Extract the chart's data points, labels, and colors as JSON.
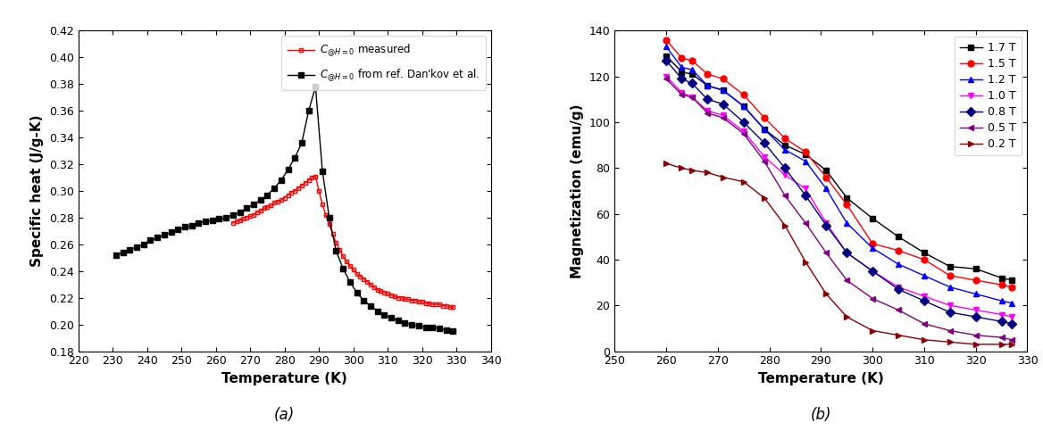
{
  "panel_a": {
    "title": "(a)",
    "xlabel": "Temperature (K)",
    "ylabel": "Specific heat (J/g-K)",
    "xlim": [
      220,
      340
    ],
    "ylim": [
      0.18,
      0.42
    ],
    "xticks": [
      220,
      230,
      240,
      250,
      260,
      270,
      280,
      290,
      300,
      310,
      320,
      330,
      340
    ],
    "yticks": [
      0.18,
      0.2,
      0.22,
      0.24,
      0.26,
      0.28,
      0.3,
      0.32,
      0.34,
      0.36,
      0.38,
      0.4,
      0.42
    ],
    "measured": {
      "label": "$C_{@H=0}$ measured",
      "color": "#ff0000",
      "marker": "s",
      "markersize": 3.5,
      "markerfacecolor": "none",
      "T": [
        265,
        266,
        267,
        268,
        269,
        270,
        271,
        272,
        273,
        274,
        275,
        276,
        277,
        278,
        279,
        280,
        281,
        282,
        283,
        284,
        285,
        286,
        287,
        288,
        289,
        290,
        291,
        292,
        293,
        294,
        295,
        296,
        297,
        298,
        299,
        300,
        301,
        302,
        303,
        304,
        305,
        306,
        307,
        308,
        309,
        310,
        311,
        312,
        313,
        314,
        315,
        316,
        317,
        318,
        319,
        320,
        321,
        322,
        323,
        324,
        325,
        326,
        327,
        328,
        329
      ],
      "C": [
        0.276,
        0.277,
        0.278,
        0.279,
        0.28,
        0.281,
        0.282,
        0.284,
        0.285,
        0.287,
        0.288,
        0.289,
        0.291,
        0.292,
        0.293,
        0.295,
        0.297,
        0.299,
        0.3,
        0.302,
        0.304,
        0.306,
        0.308,
        0.31,
        0.311,
        0.3,
        0.29,
        0.282,
        0.275,
        0.268,
        0.261,
        0.256,
        0.251,
        0.247,
        0.244,
        0.241,
        0.238,
        0.236,
        0.234,
        0.232,
        0.23,
        0.228,
        0.226,
        0.225,
        0.224,
        0.223,
        0.222,
        0.221,
        0.22,
        0.22,
        0.219,
        0.219,
        0.218,
        0.218,
        0.217,
        0.217,
        0.216,
        0.216,
        0.215,
        0.215,
        0.215,
        0.214,
        0.214,
        0.213,
        0.213
      ]
    },
    "reference": {
      "label": "$C_{@H=0}$ from ref. Dan'kov et al.",
      "color": "#000000",
      "marker": "s",
      "markersize": 4,
      "T": [
        231,
        233,
        235,
        237,
        239,
        241,
        243,
        245,
        247,
        249,
        251,
        253,
        255,
        257,
        259,
        261,
        263,
        265,
        267,
        269,
        271,
        273,
        275,
        277,
        279,
        281,
        283,
        285,
        287,
        289,
        291,
        293,
        295,
        297,
        299,
        301,
        303,
        305,
        307,
        309,
        311,
        313,
        315,
        317,
        319,
        321,
        323,
        325,
        327,
        329
      ],
      "C": [
        0.252,
        0.254,
        0.256,
        0.258,
        0.26,
        0.263,
        0.265,
        0.267,
        0.269,
        0.271,
        0.273,
        0.274,
        0.276,
        0.277,
        0.278,
        0.279,
        0.28,
        0.282,
        0.284,
        0.287,
        0.29,
        0.293,
        0.297,
        0.302,
        0.308,
        0.316,
        0.325,
        0.336,
        0.36,
        0.378,
        0.315,
        0.28,
        0.255,
        0.242,
        0.232,
        0.224,
        0.218,
        0.214,
        0.21,
        0.207,
        0.205,
        0.203,
        0.201,
        0.2,
        0.199,
        0.198,
        0.198,
        0.197,
        0.196,
        0.195
      ]
    }
  },
  "panel_b": {
    "title": "(b)",
    "xlabel": "Temperature (K)",
    "ylabel": "Magnetization (emu/g)",
    "xlim": [
      250,
      330
    ],
    "ylim": [
      0,
      140
    ],
    "xticks": [
      250,
      260,
      270,
      280,
      290,
      300,
      310,
      320,
      330
    ],
    "yticks": [
      0,
      20,
      40,
      60,
      80,
      100,
      120,
      140
    ],
    "series": [
      {
        "label": "1.7 T",
        "color": "#000000",
        "marker": "s",
        "markersize": 5,
        "T": [
          260,
          263,
          265,
          268,
          271,
          275,
          279,
          283,
          287,
          291,
          295,
          300,
          305,
          310,
          315,
          320,
          325,
          327
        ],
        "M": [
          129,
          122,
          121,
          116,
          114,
          107,
          97,
          90,
          86,
          79,
          67,
          58,
          50,
          43,
          37,
          36,
          32,
          31
        ]
      },
      {
        "label": "1.5 T",
        "color": "#ff0000",
        "marker": "o",
        "markersize": 5,
        "T": [
          260,
          263,
          265,
          268,
          271,
          275,
          279,
          283,
          287,
          291,
          295,
          300,
          305,
          310,
          315,
          320,
          325,
          327
        ],
        "M": [
          136,
          128,
          127,
          121,
          119,
          112,
          102,
          93,
          87,
          76,
          64,
          47,
          44,
          40,
          33,
          31,
          29,
          28
        ]
      },
      {
        "label": "1.2 T",
        "color": "#0000ff",
        "marker": "^",
        "markersize": 5,
        "T": [
          260,
          263,
          265,
          268,
          271,
          275,
          279,
          283,
          287,
          291,
          295,
          300,
          305,
          310,
          315,
          320,
          325,
          327
        ],
        "M": [
          133,
          124,
          123,
          116,
          114,
          107,
          97,
          88,
          83,
          71,
          56,
          45,
          38,
          33,
          28,
          25,
          22,
          21
        ]
      },
      {
        "label": "1.0 T",
        "color": "#ff00ff",
        "marker": "v",
        "markersize": 5,
        "T": [
          260,
          263,
          265,
          268,
          271,
          275,
          279,
          283,
          287,
          291,
          295,
          300,
          305,
          310,
          315,
          320,
          325,
          327
        ],
        "M": [
          120,
          113,
          111,
          105,
          103,
          96,
          85,
          77,
          71,
          56,
          43,
          35,
          28,
          24,
          20,
          18,
          16,
          15
        ]
      },
      {
        "label": "0.8 T",
        "color": "#000080",
        "marker": "D",
        "markersize": 5,
        "T": [
          260,
          263,
          265,
          268,
          271,
          275,
          279,
          283,
          287,
          291,
          295,
          300,
          305,
          310,
          315,
          320,
          325,
          327
        ],
        "M": [
          127,
          119,
          117,
          110,
          108,
          100,
          91,
          80,
          68,
          55,
          43,
          35,
          27,
          22,
          17,
          15,
          13,
          12
        ]
      },
      {
        "label": "0.5 T",
        "color": "#800080",
        "marker": "<",
        "markersize": 5,
        "T": [
          260,
          263,
          265,
          268,
          271,
          275,
          279,
          283,
          287,
          291,
          295,
          300,
          305,
          310,
          315,
          320,
          325,
          327
        ],
        "M": [
          119,
          112,
          111,
          104,
          102,
          95,
          83,
          68,
          56,
          43,
          31,
          23,
          18,
          12,
          9,
          7,
          6,
          5
        ]
      },
      {
        "label": "0.2 T",
        "color": "#8B0000",
        "marker": ">",
        "markersize": 5,
        "T": [
          260,
          263,
          265,
          268,
          271,
          275,
          279,
          283,
          287,
          291,
          295,
          300,
          305,
          310,
          315,
          320,
          325,
          327
        ],
        "M": [
          82,
          80,
          79,
          78,
          76,
          74,
          67,
          55,
          39,
          25,
          15,
          9,
          7,
          5,
          4,
          3,
          3,
          3
        ]
      }
    ]
  }
}
